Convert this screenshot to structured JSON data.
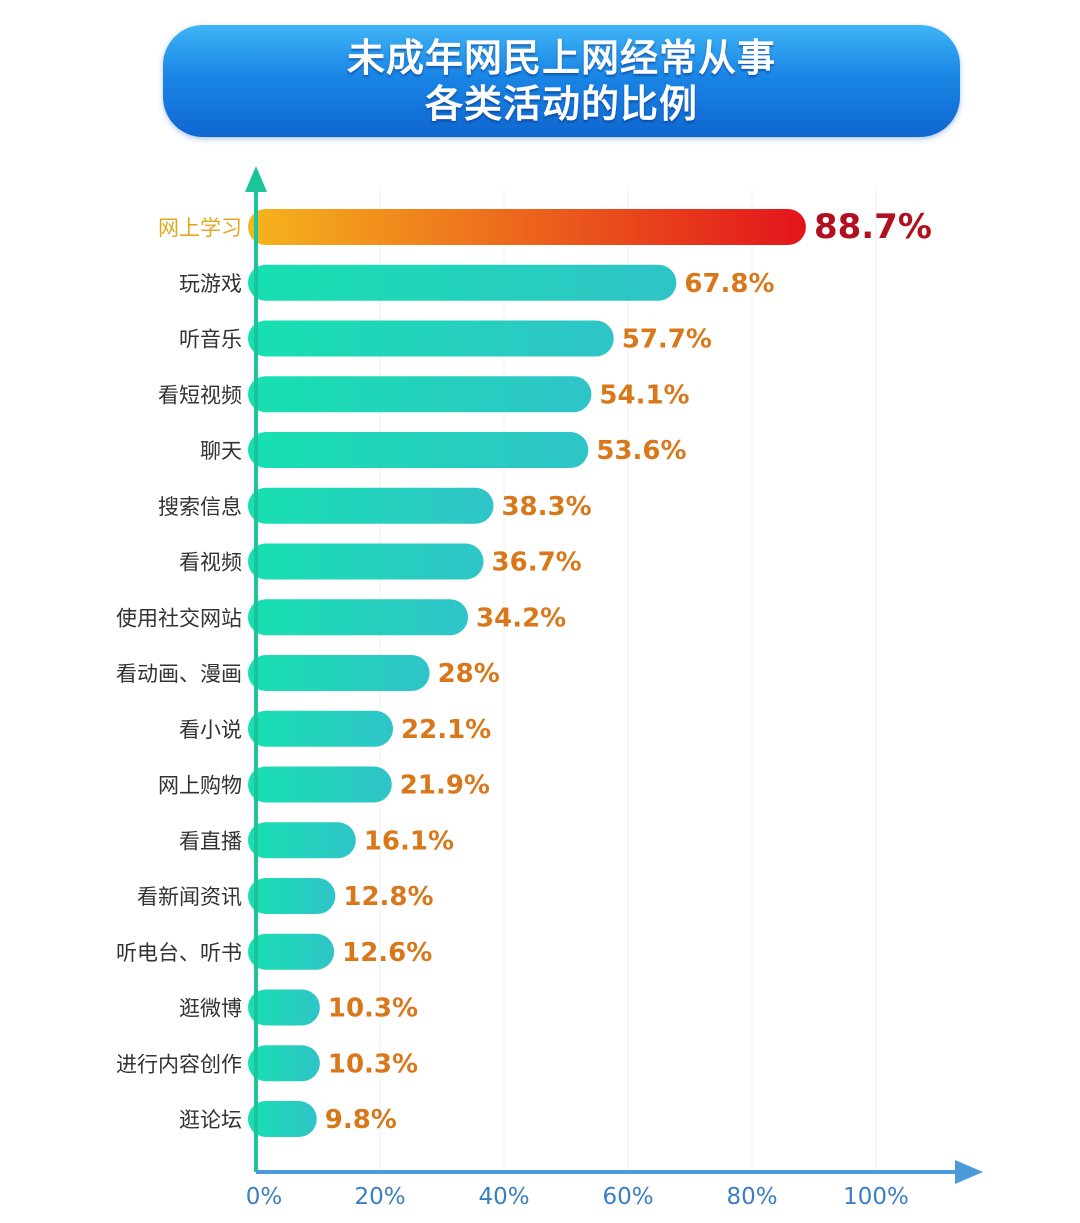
{
  "chart_data": {
    "type": "bar",
    "orientation": "horizontal",
    "title_lines": [
      "未成年网民上网经常从事",
      "各类活动的比例"
    ],
    "categories": [
      "网上学习",
      "玩游戏",
      "听音乐",
      "看短视频",
      "聊天",
      "搜索信息",
      "看视频",
      "使用社交网站",
      "看动画、漫画",
      "看小说",
      "网上购物",
      "看直播",
      "看新闻资讯",
      "听电台、听书",
      "逛微博",
      "进行内容创作",
      "逛论坛"
    ],
    "values": [
      88.7,
      67.8,
      57.7,
      54.1,
      53.6,
      38.3,
      36.7,
      34.2,
      28,
      22.1,
      21.9,
      16.1,
      12.8,
      12.6,
      10.3,
      10.3,
      9.8
    ],
    "value_labels": [
      "88.7%",
      "67.8%",
      "57.7%",
      "54.1%",
      "53.6%",
      "38.3%",
      "36.7%",
      "34.2%",
      "28%",
      "22.1%",
      "21.9%",
      "16.1%",
      "12.8%",
      "12.6%",
      "10.3%",
      "10.3%",
      "9.8%"
    ],
    "x_ticks": [
      "0%",
      "20%",
      "40%",
      "60%",
      "80%",
      "100%"
    ],
    "x_tick_values": [
      0,
      20,
      40,
      60,
      80,
      100
    ],
    "xlim": [
      0,
      100
    ],
    "grid": true,
    "highlight_index": 0,
    "colors": {
      "bar_start": "#17e0b0",
      "bar_end": "#2fc4c8",
      "highlight_start": "#f5b51c",
      "highlight_end": "#e3141c",
      "value_label": "#d9781a",
      "highlight_value_label": "#b01020",
      "highlight_category_label": "#e0a820",
      "axis_y": "#1bc49a",
      "axis_x": "#4a9bd8",
      "tick_label": "#3a7fc4"
    }
  }
}
